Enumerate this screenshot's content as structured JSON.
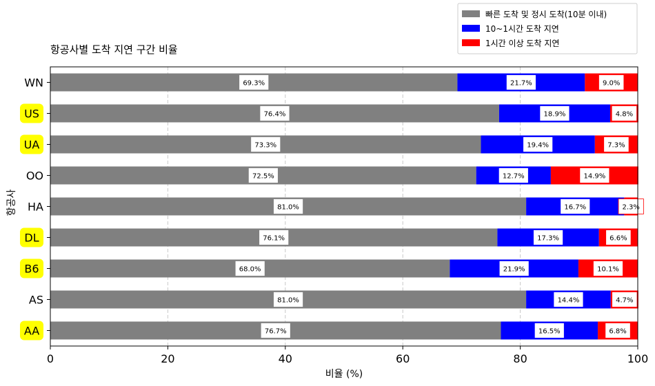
{
  "chart_data": {
    "type": "bar",
    "orientation": "horizontal",
    "stacked": true,
    "title": "항공사별 도착 지연 구간 비율",
    "xlabel": "비율 (%)",
    "ylabel": "항공사",
    "xlim": [
      0,
      100
    ],
    "xticks": [
      "0",
      "20",
      "40",
      "60",
      "80",
      "100"
    ],
    "grid": "x-dashed",
    "legend_position": "top-right",
    "categories": [
      "WN",
      "US",
      "UA",
      "OO",
      "HA",
      "DL",
      "B6",
      "AS",
      "AA"
    ],
    "highlighted_categories": [
      "US",
      "UA",
      "DL",
      "B6",
      "AA"
    ],
    "highlight_color": "#ffff00",
    "series": [
      {
        "name": "빠른 도착 및 정시 도착(10분 이내)",
        "color": "#808080",
        "values": [
          69.3,
          76.4,
          73.3,
          72.5,
          81.0,
          76.1,
          68.0,
          81.0,
          76.7
        ],
        "labels": [
          "69.3%",
          "76.4%",
          "73.3%",
          "72.5%",
          "81.0%",
          "76.1%",
          "68.0%",
          "81.0%",
          "76.7%"
        ]
      },
      {
        "name": "10~1시간 도착 지연",
        "color": "#0000ff",
        "values": [
          21.7,
          18.9,
          19.4,
          12.7,
          16.7,
          17.3,
          21.9,
          14.4,
          16.5
        ],
        "labels": [
          "21.7%",
          "18.9%",
          "19.4%",
          "12.7%",
          "16.7%",
          "17.3%",
          "21.9%",
          "14.4%",
          "16.5%"
        ]
      },
      {
        "name": "1시간 이상 도착 지연",
        "color": "#ff0000",
        "values": [
          9.0,
          4.8,
          7.3,
          14.9,
          2.3,
          6.6,
          10.1,
          4.7,
          6.8
        ],
        "labels": [
          "9.0%",
          "4.8%",
          "7.3%",
          "14.9%",
          "2.3%",
          "6.6%",
          "10.1%",
          "4.7%",
          "6.8%"
        ]
      }
    ]
  }
}
